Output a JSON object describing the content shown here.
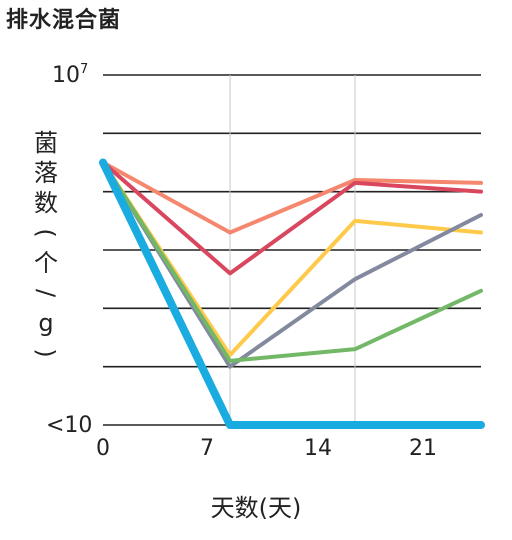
{
  "chart_data": {
    "type": "line",
    "title": "排水混合菌",
    "xlabel": "天数(天)",
    "ylabel": "菌落数(个/g)",
    "x_ticks": [
      "0",
      "7",
      "14",
      "21"
    ],
    "y_top_label": "10^7",
    "y_bottom_label": "<10",
    "ylim": [
      1,
      7
    ],
    "grid": true,
    "series": [
      {
        "color": "#F4876E",
        "x": [
          0,
          7,
          14,
          21
        ],
        "y": [
          5.5,
          4.3,
          5.2,
          5.15
        ]
      },
      {
        "color": "#D9475F",
        "x": [
          0,
          7,
          14,
          21
        ],
        "y": [
          5.5,
          3.6,
          5.15,
          5.0
        ]
      },
      {
        "color": "#FFC94A",
        "x": [
          0,
          7,
          14,
          21
        ],
        "y": [
          5.5,
          2.2,
          4.5,
          4.3
        ]
      },
      {
        "color": "#838A9E",
        "x": [
          0,
          7,
          14,
          21
        ],
        "y": [
          5.5,
          2.0,
          3.5,
          4.6
        ]
      },
      {
        "color": "#72B866",
        "x": [
          0,
          7,
          14,
          21
        ],
        "y": [
          5.5,
          2.1,
          2.3,
          3.3
        ]
      },
      {
        "color": "#1AABE0",
        "x": [
          0,
          7,
          14,
          21
        ],
        "y": [
          5.5,
          1.0,
          1.0,
          1.0
        ]
      }
    ]
  }
}
